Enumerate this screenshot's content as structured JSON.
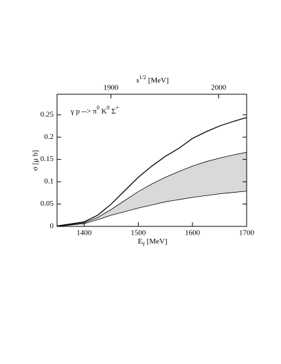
{
  "chart_data": {
    "type": "line",
    "x_label": [
      "E",
      "γ",
      " [MeV]"
    ],
    "y_label": "σ [μ b]",
    "x2_label": [
      "s",
      "1/2",
      " [MeV]"
    ],
    "annotation": [
      "γ p --> π",
      "0",
      " K",
      "0",
      " Σ",
      "+"
    ],
    "x": [
      1350,
      1400,
      1425,
      1450,
      1475,
      1500,
      1525,
      1550,
      1575,
      1600,
      1625,
      1650,
      1675,
      1700
    ],
    "series": [
      {
        "color": "#000000",
        "values": [
          0.001,
          0.01,
          0.025,
          0.05,
          0.08,
          0.11,
          0.135,
          0.157,
          0.175,
          0.197,
          0.212,
          0.225,
          0.235,
          0.244
        ]
      }
    ],
    "band": {
      "color": "#d9d9d9",
      "upper": [
        0,
        0.008,
        0.02,
        0.038,
        0.058,
        0.078,
        0.095,
        0.11,
        0.123,
        0.135,
        0.145,
        0.153,
        0.16,
        0.166
      ],
      "lower": [
        0,
        0.006,
        0.015,
        0.025,
        0.033,
        0.041,
        0.048,
        0.055,
        0.06,
        0.065,
        0.069,
        0.073,
        0.076,
        0.079
      ]
    },
    "xlim": [
      1350,
      1700
    ],
    "xticks": [
      1400,
      1500,
      1600,
      1700
    ],
    "x2lim": [
      1850,
      2026
    ],
    "x2ticks": [
      1900,
      2000
    ],
    "ylim": [
      0,
      0.296
    ],
    "yticks": [
      0,
      0.05,
      0.1,
      0.15,
      0.2,
      0.25
    ],
    "grid": false
  }
}
